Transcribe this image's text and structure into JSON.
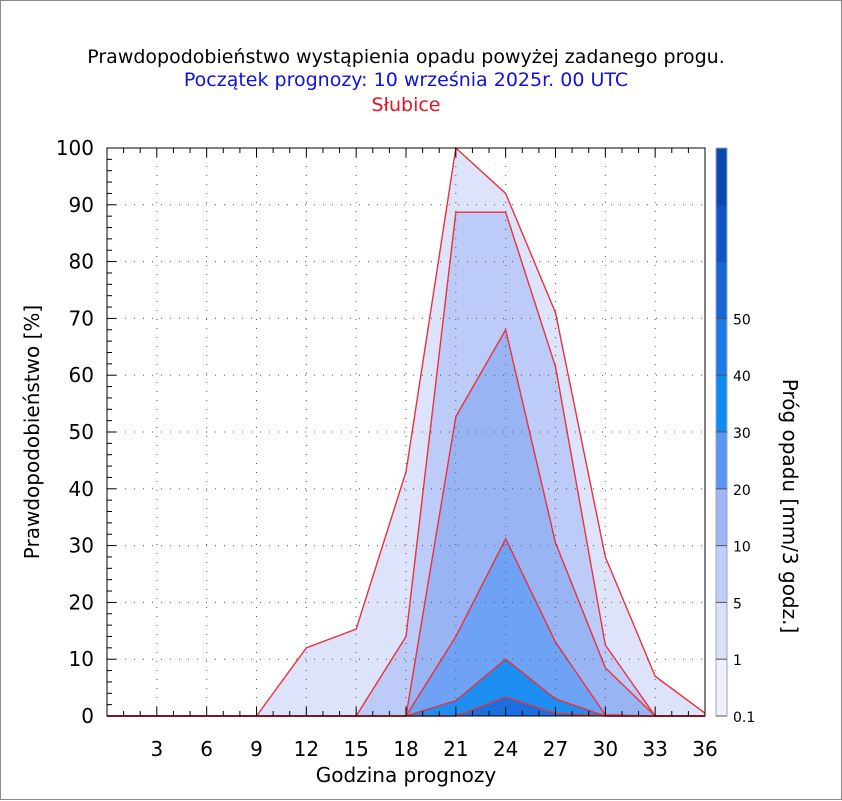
{
  "chart_data": {
    "type": "area",
    "title": "Prawdopodobieństwo wystąpienia opadu powyżej zadanego progu.",
    "subtitle": "Początek prognozy: 10 września 2025r. 00 UTC",
    "location": "Słubice",
    "xlabel": "Godzina prognozy",
    "ylabel": "Prawdopodobieństwo [%]",
    "colorbar_label": "Próg opadu [mm/3 godz.]",
    "xlim": [
      0,
      36
    ],
    "ylim": [
      0,
      100
    ],
    "x_ticks": [
      "3",
      "6",
      "9",
      "12",
      "15",
      "18",
      "21",
      "24",
      "27",
      "30",
      "33",
      "36"
    ],
    "y_ticks": [
      "0",
      "10",
      "20",
      "30",
      "40",
      "50",
      "60",
      "70",
      "80",
      "90",
      "100"
    ],
    "x": [
      0,
      3,
      6,
      9,
      12,
      15,
      18,
      21,
      24,
      27,
      30,
      33,
      36
    ],
    "series": [
      {
        "name": "0.1",
        "color": "#dde3fa",
        "values": [
          0,
          0,
          0,
          0,
          12,
          15.3,
          43,
          100,
          92,
          71,
          28,
          7,
          0.5
        ]
      },
      {
        "name": "1",
        "color": "#bccbf7",
        "values": [
          0,
          0,
          0,
          0,
          0,
          0,
          14,
          88.7,
          88.7,
          61.5,
          12.5,
          0,
          0
        ]
      },
      {
        "name": "5",
        "color": "#99b4f3",
        "values": [
          0,
          0,
          0,
          0,
          0,
          0,
          0,
          52.7,
          68,
          30.5,
          8.5,
          0,
          0
        ]
      },
      {
        "name": "10",
        "color": "#6ea2f5",
        "values": [
          0,
          0,
          0,
          0,
          0,
          0,
          0,
          14,
          31.2,
          13,
          0.2,
          0,
          0
        ]
      },
      {
        "name": "20",
        "color": "#1d8ef2",
        "values": [
          0,
          0,
          0,
          0,
          0,
          0,
          0,
          2.7,
          10,
          3,
          0,
          0,
          0
        ]
      },
      {
        "name": "30",
        "color": "#1a6fe0",
        "values": [
          0,
          0,
          0,
          0,
          0,
          0,
          0,
          0,
          3.3,
          0.5,
          0,
          0,
          0
        ]
      }
    ],
    "colorbar": {
      "bands": [
        {
          "color": "#eef0fb"
        },
        {
          "color": "#d9e0f9"
        },
        {
          "color": "#c0cdf7"
        },
        {
          "color": "#9fb6f5"
        },
        {
          "color": "#5a96f5"
        },
        {
          "color": "#0a8cf3"
        },
        {
          "color": "#1d78e8"
        },
        {
          "color": "#1465d6"
        },
        {
          "color": "#0f55c4"
        },
        {
          "color": "#0a47b0"
        }
      ],
      "labels": [
        "0.1",
        "1",
        "5",
        "10",
        "20",
        "30",
        "40",
        "50"
      ]
    },
    "line_color": "#e8323c",
    "grid": true
  }
}
